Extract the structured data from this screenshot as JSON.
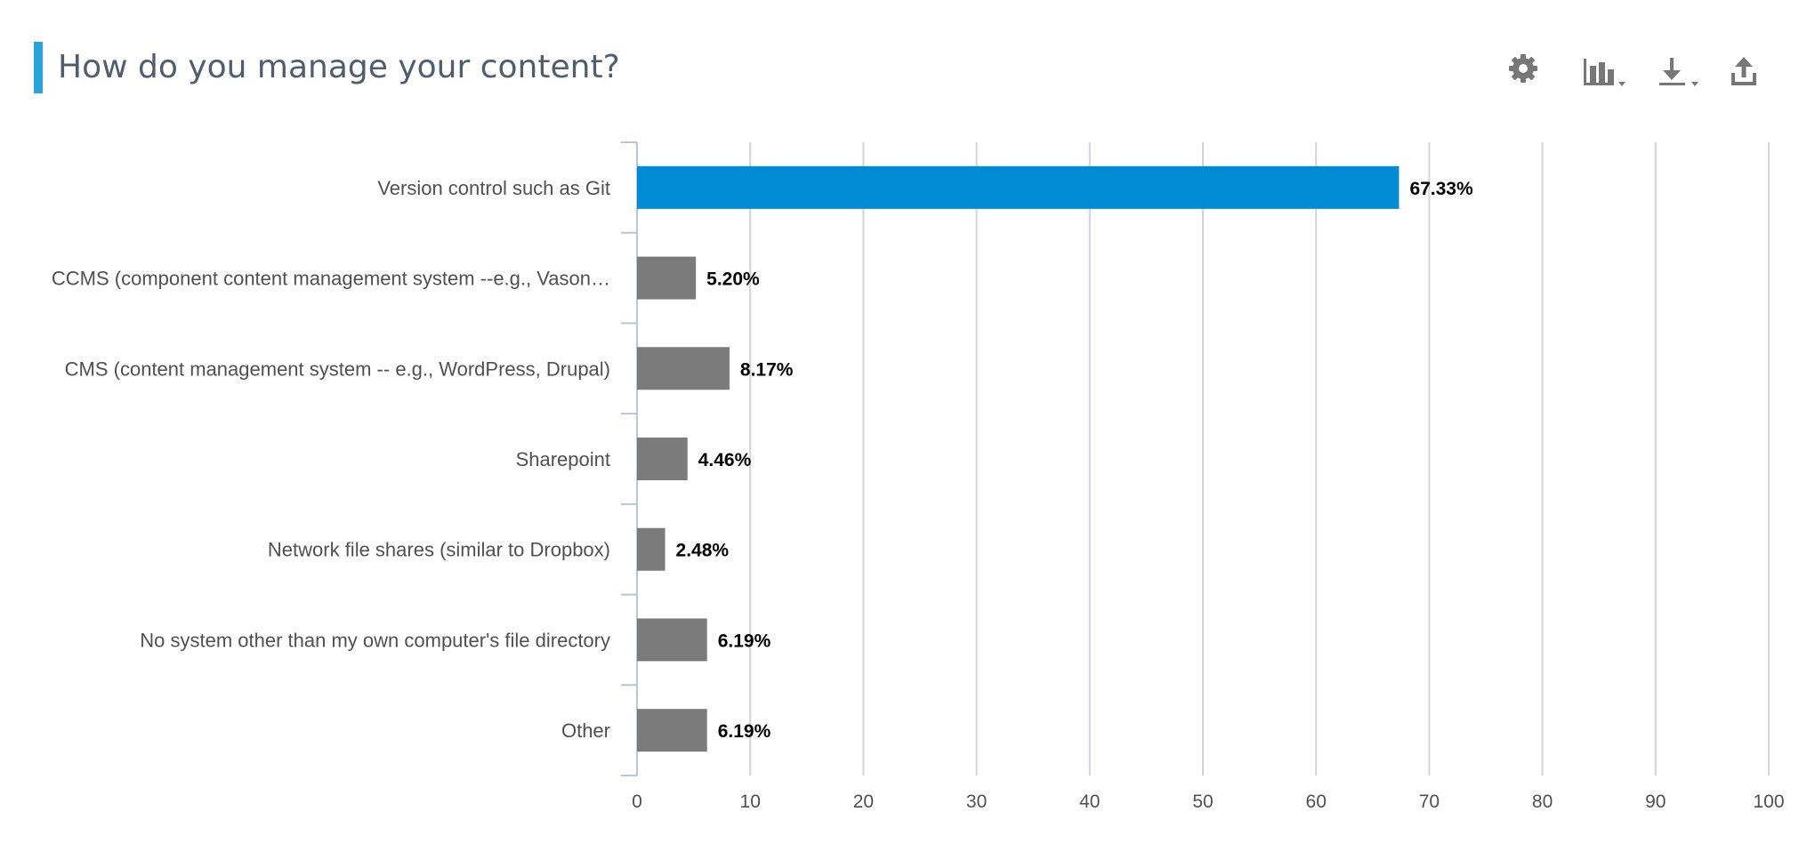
{
  "header": {
    "title": "How do you manage your content?",
    "accent_color": "#29a3dc"
  },
  "toolbar": {
    "icons": [
      "gear-icon",
      "bar-chart-icon",
      "download-icon",
      "share-icon"
    ]
  },
  "chart_data": {
    "type": "bar",
    "orientation": "horizontal",
    "title": "",
    "xlabel": "",
    "ylabel": "",
    "categories": [
      "Version control such as Git",
      "CCMS (component content management system --e.g., Vason…",
      "CMS (content management system -- e.g., WordPress, Drupal)",
      "Sharepoint",
      "Network file shares (similar to Dropbox)",
      "No system other than my own computer's file directory",
      "Other"
    ],
    "values": [
      67.33,
      5.2,
      8.17,
      4.46,
      2.48,
      6.19,
      6.19
    ],
    "value_labels": [
      "67.33%",
      "5.20%",
      "8.17%",
      "4.46%",
      "2.48%",
      "6.19%",
      "6.19%"
    ],
    "xlim": [
      0,
      100
    ],
    "ticks": [
      0,
      10,
      20,
      30,
      40,
      50,
      60,
      70,
      80,
      90,
      100
    ],
    "grid": true,
    "colors": {
      "highlight": "#028cd6",
      "bar": "#7b7b7b",
      "grid": "#d1d5da",
      "axis": "#b8c6d8"
    }
  }
}
